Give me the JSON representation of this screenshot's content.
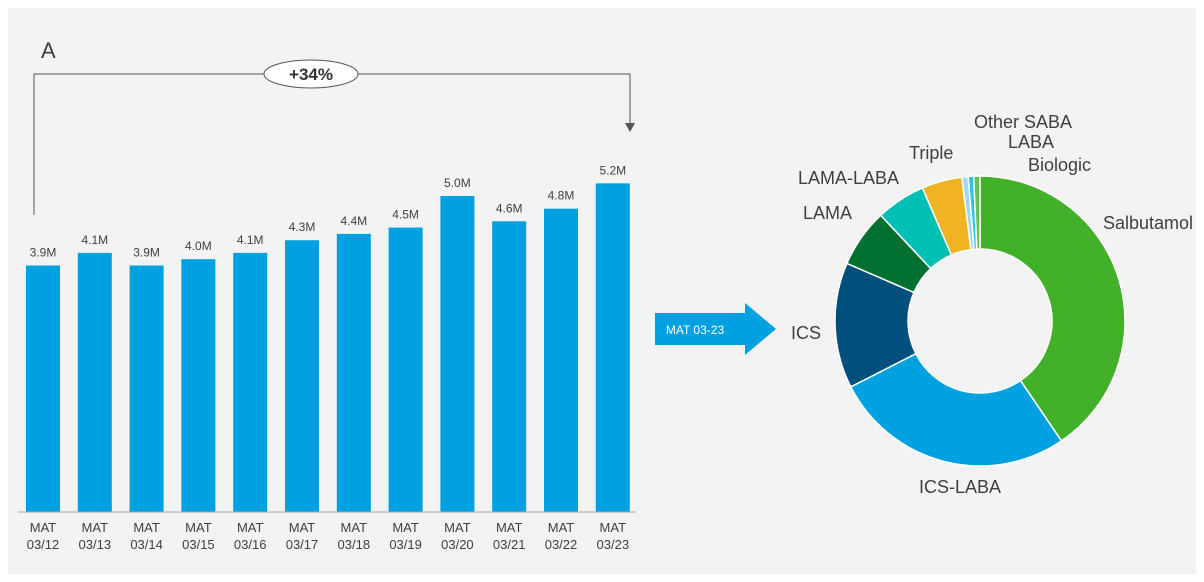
{
  "panel_label": "A",
  "growth_label": "+34%",
  "arrow_label": "MAT 03-23",
  "colors": {
    "bar": "#00a1e0",
    "axis": "#aaaaaa",
    "text": "#404040",
    "callout_stroke": "#555555"
  },
  "chart_data": [
    {
      "type": "bar",
      "categories": [
        [
          "MAT",
          "03/12"
        ],
        [
          "MAT",
          "03/13"
        ],
        [
          "MAT",
          "03/14"
        ],
        [
          "MAT",
          "03/15"
        ],
        [
          "MAT",
          "03/16"
        ],
        [
          "MAT",
          "03/17"
        ],
        [
          "MAT",
          "03/18"
        ],
        [
          "MAT",
          "03/19"
        ],
        [
          "MAT",
          "03/20"
        ],
        [
          "MAT",
          "03/21"
        ],
        [
          "MAT",
          "03/22"
        ],
        [
          "MAT",
          "03/23"
        ]
      ],
      "values": [
        3.9,
        4.1,
        3.9,
        4.0,
        4.1,
        4.3,
        4.4,
        4.5,
        5.0,
        4.6,
        4.8,
        5.2
      ],
      "value_labels": [
        "3.9M",
        "4.1M",
        "3.9M",
        "4.0M",
        "4.1M",
        "4.3M",
        "4.4M",
        "4.5M",
        "5.0M",
        "4.6M",
        "4.8M",
        "5.2M"
      ],
      "ylim": [
        0,
        5.2
      ],
      "grid": false
    },
    {
      "type": "pie",
      "donut": true,
      "slices": [
        {
          "label": "Salbutamol",
          "value": 40.5,
          "color": "#43b02a"
        },
        {
          "label": "ICS-LABA",
          "value": 27.0,
          "color": "#00a1e0"
        },
        {
          "label": "ICS",
          "value": 14.0,
          "color": "#004f7c"
        },
        {
          "label": "LAMA",
          "value": 6.5,
          "color": "#007030"
        },
        {
          "label": "LAMA-LABA",
          "value": 5.5,
          "color": "#00bfb3"
        },
        {
          "label": "Triple",
          "value": 4.5,
          "color": "#f0b323"
        },
        {
          "label": "Other SABA",
          "value": 0.7,
          "color": "#9dd9f7"
        },
        {
          "label": "LABA",
          "value": 0.6,
          "color": "#2ec4e6"
        },
        {
          "label": "Biologic",
          "value": 0.7,
          "color": "#6bbf59"
        }
      ]
    }
  ]
}
